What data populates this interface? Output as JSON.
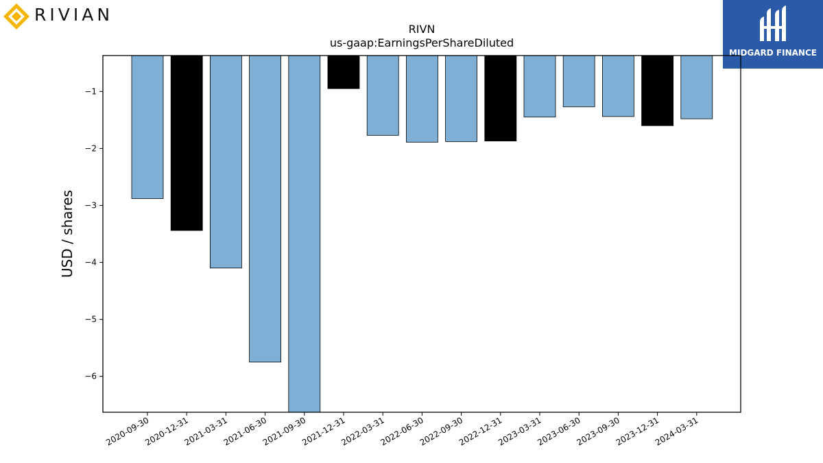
{
  "brand_left": {
    "wordmark": "RIVIAN",
    "accent_color": "#f4b400"
  },
  "brand_right": {
    "name": "MIDGARD FINANCE",
    "bg_color": "#2b5aa8"
  },
  "chart_data": {
    "type": "bar",
    "title": "RIVN",
    "subtitle": "us-gaap:EarningsPerShareDiluted",
    "xlabel": "",
    "ylabel": "USD / shares",
    "categories": [
      "2020-09-30",
      "2020-12-31",
      "2021-03-31",
      "2021-06-30",
      "2021-09-30",
      "2021-12-31",
      "2022-03-31",
      "2022-06-30",
      "2022-09-30",
      "2022-12-31",
      "2023-03-31",
      "2023-06-30",
      "2023-09-30",
      "2023-12-31",
      "2024-03-31"
    ],
    "values": [
      -2.88,
      -3.44,
      -4.1,
      -5.75,
      -6.63,
      -0.95,
      -1.77,
      -1.89,
      -1.88,
      -1.87,
      -1.45,
      -1.27,
      -1.44,
      -1.6,
      -1.48
    ],
    "bar_colors": [
      "#7fafd4",
      "#000000",
      "#7fafd4",
      "#7fafd4",
      "#7fafd4",
      "#000000",
      "#7fafd4",
      "#7fafd4",
      "#7fafd4",
      "#000000",
      "#7fafd4",
      "#7fafd4",
      "#7fafd4",
      "#000000",
      "#7fafd4"
    ],
    "yticks": [
      -1,
      -2,
      -3,
      -4,
      -5,
      -6
    ],
    "ytick_labels": [
      "−1",
      "−2",
      "−3",
      "−4",
      "−5",
      "−6"
    ],
    "ylim": [
      -6.63,
      -0.37
    ],
    "grid": false,
    "legend": "none"
  }
}
